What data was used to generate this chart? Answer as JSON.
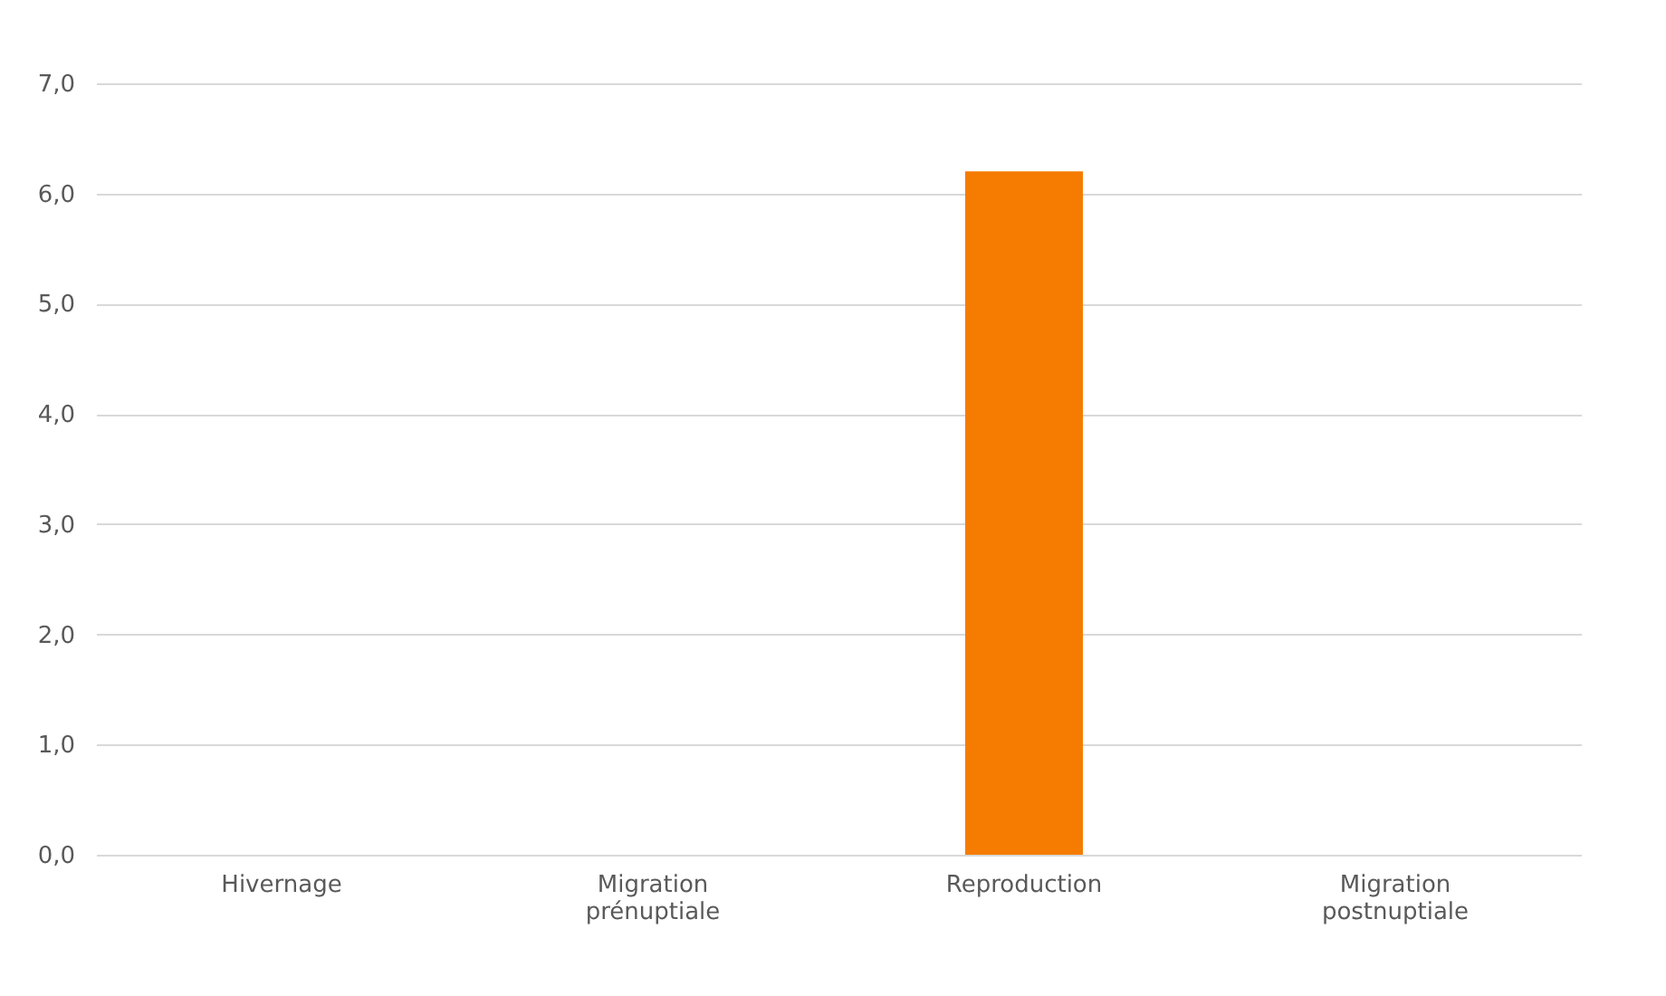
{
  "chart_data": {
    "type": "bar",
    "categories": [
      "Hivernage",
      "Migration prénuptiale",
      "Reproduction",
      "Migration postnuptiale"
    ],
    "values": [
      0,
      0,
      6.2,
      0
    ],
    "color": "#f57c00",
    "ylim": [
      0,
      7
    ],
    "yticks": [
      {
        "value": 0,
        "label": "0,0"
      },
      {
        "value": 1,
        "label": "1,0"
      },
      {
        "value": 2,
        "label": "2,0"
      },
      {
        "value": 3,
        "label": "3,0"
      },
      {
        "value": 4,
        "label": "4,0"
      },
      {
        "value": 5,
        "label": "5,0"
      },
      {
        "value": 6,
        "label": "6,0"
      },
      {
        "value": 7,
        "label": "7,0"
      }
    ],
    "grid": "y"
  }
}
